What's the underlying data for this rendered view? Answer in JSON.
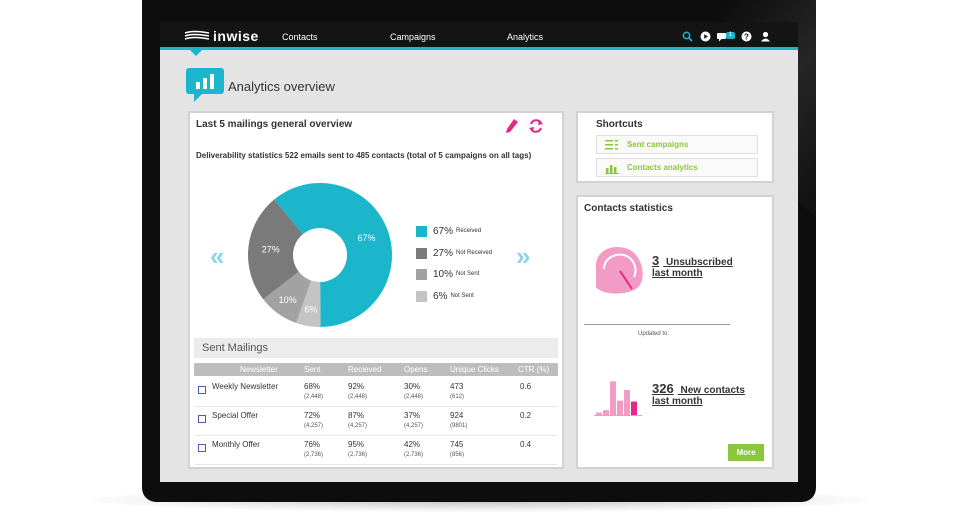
{
  "app": {
    "brand": "inwise",
    "nav": [
      {
        "label": "Contacts"
      },
      {
        "label": "Campaigns"
      },
      {
        "label": "Analytics"
      }
    ],
    "icons": [
      "search-icon",
      "play-circle-icon",
      "messages-icon",
      "help-icon",
      "user-icon"
    ],
    "notification_count": "1",
    "accent_color": "#1bb6cc"
  },
  "page": {
    "title": "Analytics overview"
  },
  "overview": {
    "title": "Last 5 mailings general overview",
    "subtitle": "Deliverability statistics 522 emails sent to 485 contacts (total of 5 campaigns on all tags)",
    "legend": [
      {
        "pct": "67%",
        "label": "Received",
        "color": "#1bb6cc"
      },
      {
        "pct": "27%",
        "label": "Not Received",
        "color": "#7a7a7a"
      },
      {
        "pct": "10%",
        "label": "Not Sent",
        "color": "#a2a2a2"
      },
      {
        "pct": "6%",
        "label": "Not Sent",
        "color": "#c4c4c4"
      }
    ]
  },
  "chart_data": {
    "type": "pie",
    "slices": [
      {
        "label": "67%",
        "value": 67,
        "color": "#1bb6cc"
      },
      {
        "label": "6%",
        "value": 6,
        "color": "#c4c4c4"
      },
      {
        "label": "10%",
        "value": 10,
        "color": "#a2a2a2"
      },
      {
        "label": "27%",
        "value": 27,
        "color": "#7a7a7a"
      }
    ]
  },
  "sent_mailings": {
    "title": "Sent Mailings",
    "columns": [
      "Newsletter",
      "Sent",
      "Recieved",
      "Opens",
      "Unique Clicks",
      "CTR (%)"
    ],
    "rows": [
      {
        "name": "Weekly Newsletter",
        "sent": "68%",
        "sent_sub": "(2,448)",
        "received": "92%",
        "received_sub": "(2,448)",
        "opens": "30%",
        "opens_sub": "(2,448)",
        "clicks": "473",
        "clicks_sub": "(612)",
        "ctr": "0.6"
      },
      {
        "name": "Special Offer",
        "sent": "72%",
        "sent_sub": "(4,257)",
        "received": "87%",
        "received_sub": "(4,257)",
        "opens": "37%",
        "opens_sub": "(4,257)",
        "clicks": "924",
        "clicks_sub": "(9801)",
        "ctr": "0.2"
      },
      {
        "name": "Monthly Offer",
        "sent": "76%",
        "sent_sub": "(2,736)",
        "received": "95%",
        "received_sub": "(2,736)",
        "opens": "42%",
        "opens_sub": "(2,736)",
        "clicks": "745",
        "clicks_sub": "(856)",
        "ctr": "0.4"
      }
    ]
  },
  "shortcuts": {
    "title": "Shortcuts",
    "items": [
      {
        "label": "Sent campaigns",
        "icon": "list-icon"
      },
      {
        "label": "Contacts analytics",
        "icon": "bar-chart-icon"
      }
    ]
  },
  "contacts_stats": {
    "title": "Contacts statistics",
    "unsubscribed": {
      "count": "3",
      "label": "Unsubscribed",
      "period": "last month"
    },
    "updated_label": "Updated to:",
    "new_contacts": {
      "count": "326",
      "label": "New contacts",
      "period": "last month"
    },
    "more_label": "More",
    "bars": [
      0.05,
      0.1,
      0.7,
      0.3,
      0.52,
      0.28
    ]
  }
}
